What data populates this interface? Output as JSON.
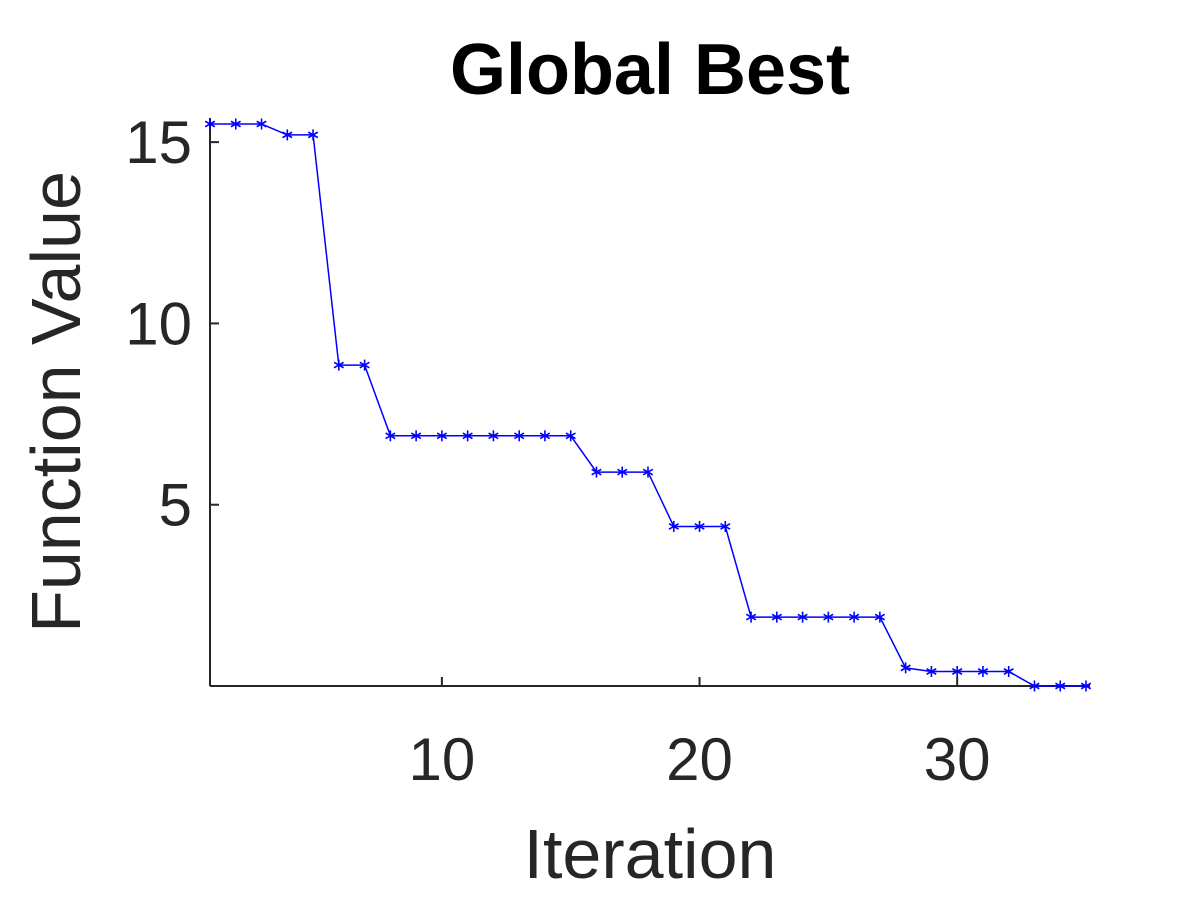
{
  "chart_data": {
    "type": "line",
    "title": "Global Best",
    "xlabel": "Iteration",
    "ylabel": "Function Value",
    "xlim": [
      1,
      35
    ],
    "ylim": [
      0,
      15.5
    ],
    "xticks": [
      10,
      20,
      30
    ],
    "yticks": [
      5,
      10,
      15
    ],
    "grid": false,
    "marker": "asterisk",
    "color": "#0000ff",
    "x": [
      1,
      2,
      3,
      4,
      5,
      6,
      7,
      8,
      9,
      10,
      11,
      12,
      13,
      14,
      15,
      16,
      17,
      18,
      19,
      20,
      21,
      22,
      23,
      24,
      25,
      26,
      27,
      28,
      29,
      30,
      31,
      32,
      33,
      34,
      35
    ],
    "y": [
      15.5,
      15.5,
      15.5,
      15.2,
      15.2,
      8.85,
      8.85,
      6.9,
      6.9,
      6.9,
      6.9,
      6.9,
      6.9,
      6.9,
      6.9,
      5.9,
      5.9,
      5.9,
      4.4,
      4.4,
      4.4,
      1.9,
      1.9,
      1.9,
      1.9,
      1.9,
      1.9,
      0.5,
      0.4,
      0.4,
      0.4,
      0.4,
      0.0,
      0.0,
      0.0
    ]
  }
}
